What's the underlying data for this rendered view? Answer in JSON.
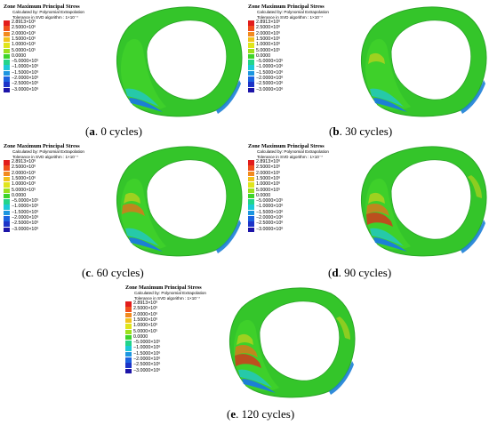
{
  "legend": {
    "title": "Zone Maximum Principal Stress",
    "sub1": "Calculated by: Polynomial Extrapolation",
    "sub2": "Tolerance in SVD algorithm : 1×10⁻⁷",
    "levels": [
      "2.8913×10⁶",
      "2.5000×10⁶",
      "2.0000×10⁶",
      "1.5000×10⁶",
      "1.0000×10⁶",
      "5.0000×10⁵",
      "0.0000",
      "−5.0000×10⁵",
      "−1.0000×10⁶",
      "−1.5000×10⁶",
      "−2.0000×10⁶",
      "−2.5000×10⁶",
      "−3.0000×10⁶"
    ],
    "colors": [
      "#e21c1c",
      "#f0501c",
      "#f28a1e",
      "#f2c21c",
      "#e0e51c",
      "#9ce01c",
      "#3dd42a",
      "#22d48a",
      "#1cc8d8",
      "#1c96e0",
      "#1c62e0",
      "#1c34c8",
      "#1c14a8"
    ]
  },
  "panels": [
    {
      "letter": "a",
      "caption_rest": ". 0 cycles"
    },
    {
      "letter": "b",
      "caption_rest": ". 30 cycles"
    },
    {
      "letter": "c",
      "caption_rest": ". 60 cycles"
    },
    {
      "letter": "d",
      "caption_rest": ". 90 cycles"
    },
    {
      "letter": "e",
      "caption_rest": ". 120 cycles"
    }
  ],
  "tunnel_colors": {
    "outer": "#34c52a",
    "outer_shade": "#2aa626",
    "inner": "#3fd12a",
    "inner_dark": "#2fb02a",
    "blue": "#1c7fd6",
    "cyan": "#22c8c0",
    "yellow": "#c8d21c",
    "orange": "#e0741c",
    "red": "#d2381c"
  }
}
